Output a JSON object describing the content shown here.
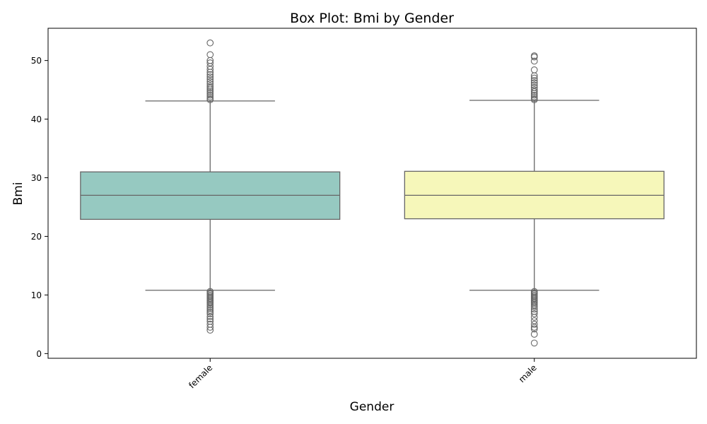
{
  "chart_data": {
    "type": "box",
    "title": "Box Plot: Bmi by Gender",
    "xlabel": "Gender",
    "ylabel": "Bmi",
    "ylim": [
      -0.8,
      55.5
    ],
    "yticks": [
      0,
      10,
      20,
      30,
      40,
      50
    ],
    "grid": false,
    "legend": "none",
    "categories": [
      "female",
      "male"
    ],
    "boxes": [
      {
        "category": "female",
        "color": "#96c9c1",
        "whisker_low": 10.8,
        "q1": 22.9,
        "median": 27.0,
        "q3": 31.0,
        "whisker_high": 43.1,
        "outliers": [
          53.0,
          51.0,
          50.0,
          49.6,
          49.0,
          48.5,
          48.0,
          47.6,
          47.2,
          46.8,
          46.4,
          46.0,
          45.6,
          45.3,
          45.0,
          44.7,
          44.4,
          44.1,
          43.8,
          43.5,
          43.3,
          10.6,
          10.4,
          10.2,
          10.0,
          9.8,
          9.6,
          9.4,
          9.2,
          9.0,
          8.8,
          8.6,
          8.3,
          8.0,
          7.7,
          7.4,
          7.1,
          6.8,
          6.3,
          5.9,
          5.5,
          5.0,
          4.5,
          4.0
        ]
      },
      {
        "category": "male",
        "color": "#f6f7ba",
        "whisker_low": 10.8,
        "q1": 23.0,
        "median": 27.0,
        "q3": 31.1,
        "whisker_high": 43.2,
        "outliers": [
          50.8,
          50.6,
          49.9,
          48.4,
          47.4,
          47.0,
          46.6,
          46.2,
          45.8,
          45.4,
          45.0,
          44.7,
          44.4,
          44.1,
          43.8,
          43.5,
          43.3,
          10.6,
          10.4,
          10.2,
          10.0,
          9.8,
          9.6,
          9.4,
          9.2,
          9.0,
          8.8,
          8.6,
          8.3,
          8.0,
          7.6,
          7.2,
          6.8,
          6.2,
          5.6,
          5.0,
          4.5,
          4.2,
          3.3,
          1.8
        ]
      }
    ]
  }
}
